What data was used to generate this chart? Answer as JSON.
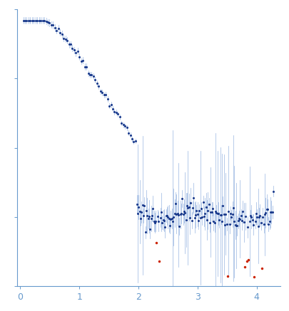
{
  "title": "",
  "xlabel": "",
  "ylabel": "",
  "xlim": [
    -0.05,
    4.4
  ],
  "ylim_min": -0.15,
  "ylim_max": 1.1,
  "bg_color": "#ffffff",
  "axes_color": "#6699cc",
  "tick_color": "#6699cc",
  "dot_color_normal": "#1a3a8c",
  "dot_color_outlier": "#cc2200",
  "error_color": "#88aadd",
  "dot_size": 2.2,
  "outlier_size": 2.5,
  "tick_label_color": "#6699cc",
  "xticks": [
    0,
    1,
    2,
    3,
    4
  ],
  "seed": 42
}
